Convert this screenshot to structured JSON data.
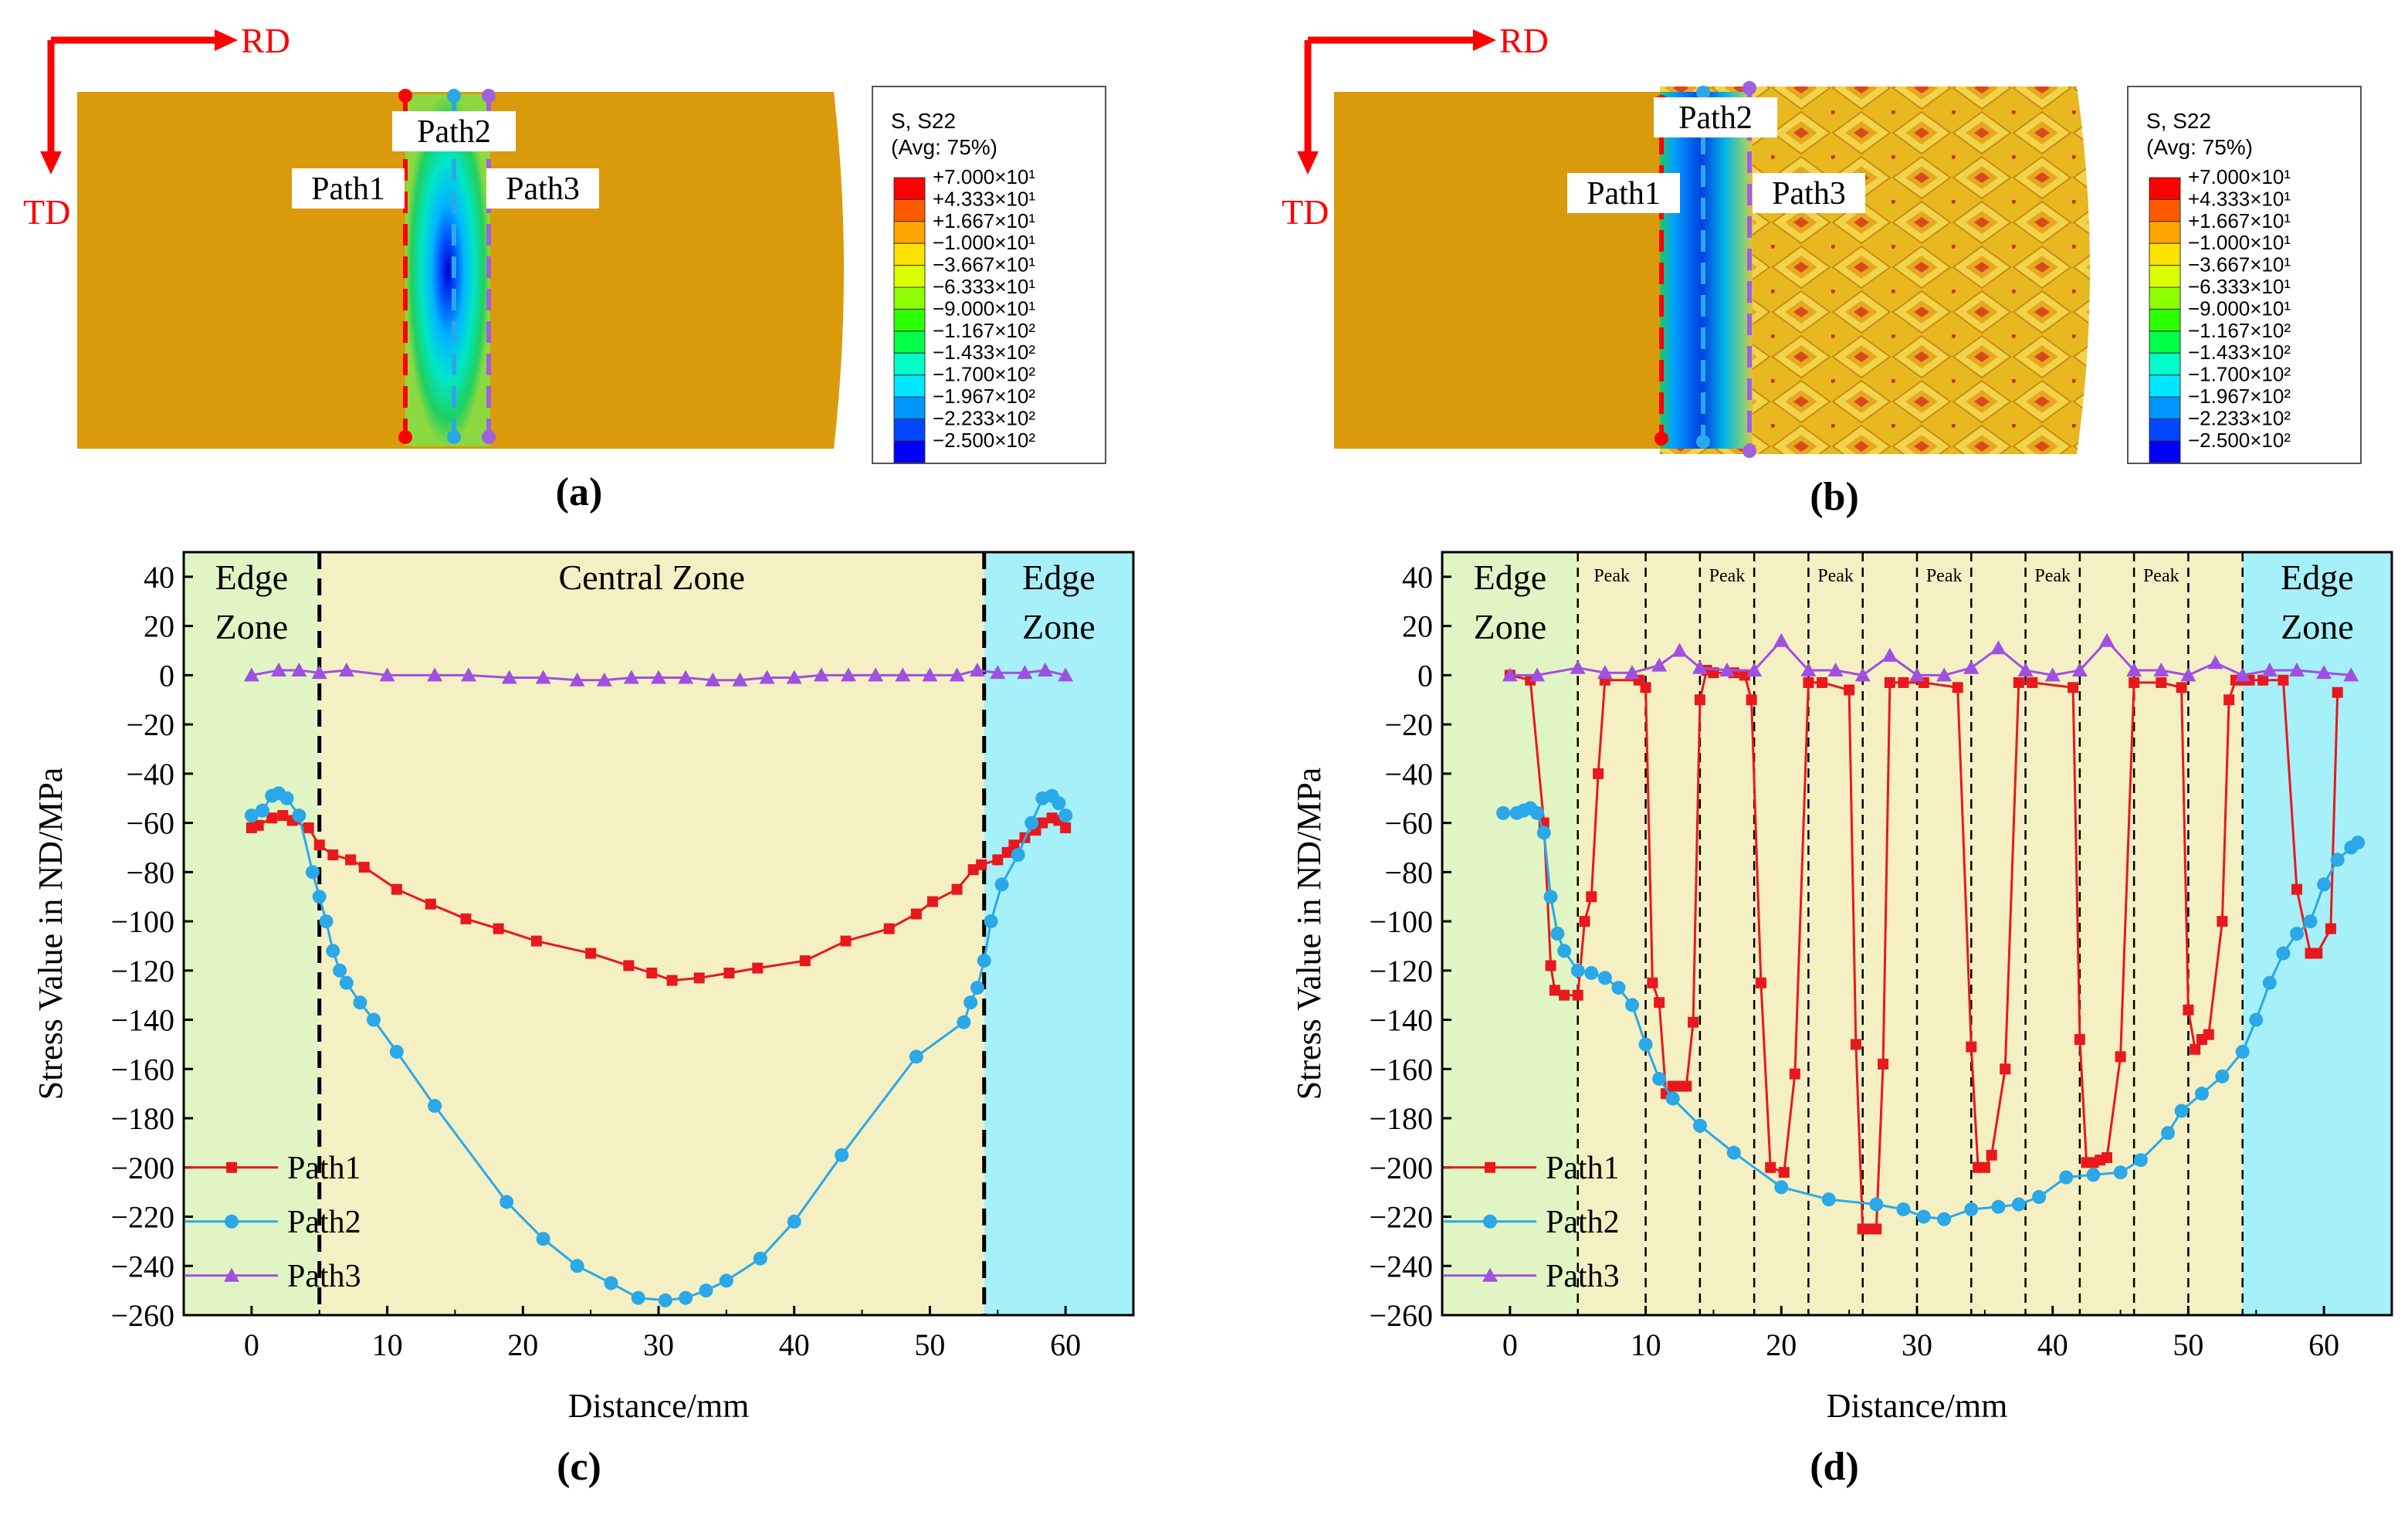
{
  "panels": {
    "a": {
      "label": "(a)",
      "axis_rd": "RD",
      "axis_td": "TD",
      "path_labels": [
        "Path1",
        "Path2",
        "Path3"
      ],
      "legend": {
        "title1": "S, S22",
        "title2": "(Avg: 75%)",
        "entries": [
          "+7.000×10¹",
          "+4.333×10¹",
          "+1.667×10¹",
          "−1.000×10¹",
          "−3.667×10¹",
          "−6.333×10¹",
          "−9.000×10¹",
          "−1.167×10²",
          "−1.433×10²",
          "−1.700×10²",
          "−1.967×10²",
          "−2.233×10²",
          "−2.500×10²"
        ]
      }
    },
    "b": {
      "label": "(b)",
      "axis_rd": "RD",
      "axis_td": "TD",
      "path_labels": [
        "Path1",
        "Path2",
        "Path3"
      ],
      "legend": {
        "title1": "S, S22",
        "title2": "(Avg: 75%)",
        "entries": [
          "+7.000×10¹",
          "+4.333×10¹",
          "+1.667×10¹",
          "−1.000×10¹",
          "−3.667×10¹",
          "−6.333×10¹",
          "−9.000×10¹",
          "−1.167×10²",
          "−1.433×10²",
          "−1.700×10²",
          "−1.967×10²",
          "−2.233×10²",
          "−2.500×10²"
        ]
      }
    },
    "c": {
      "label": "(c)"
    },
    "d": {
      "label": "(d)"
    }
  },
  "colors": {
    "plate": "#d99a0c",
    "legend_scale": [
      "#ff0000",
      "#ff5a00",
      "#ffa500",
      "#ffe100",
      "#dcff00",
      "#8cff00",
      "#2cff00",
      "#00ff46",
      "#00ffc8",
      "#00e6ff",
      "#0096ff",
      "#0046ff",
      "#0000ff"
    ],
    "edge_left": "#e1f5c4",
    "central": "#f4f0c3",
    "edge_right": "#a6f0fa",
    "path1": "#e8181c",
    "path2": "#2aa8e8",
    "path3": "#a050e0"
  },
  "chart_data": [
    {
      "type": "line",
      "panel": "(c)",
      "xlabel": "Distance/mm",
      "ylabel": "Stress Value in ND/MPa",
      "xlim": [
        -5,
        65
      ],
      "ylim": [
        -260,
        50
      ],
      "xticks": [
        0,
        10,
        20,
        30,
        40,
        50,
        60
      ],
      "yticks": [
        40,
        20,
        0,
        -20,
        -40,
        -60,
        -80,
        -100,
        -120,
        -140,
        -160,
        -180,
        -200,
        -220,
        -240,
        -260
      ],
      "zones": [
        {
          "name": "Edge Zone",
          "lines": [
            "Edge",
            "Zone"
          ],
          "x": [
            -5,
            5
          ]
        },
        {
          "name": "Central Zone",
          "lines": [
            "Central Zone"
          ],
          "x": [
            5,
            54
          ]
        },
        {
          "name": "Edge Zone",
          "lines": [
            "Edge",
            "Zone"
          ],
          "x": [
            54,
            65
          ]
        }
      ],
      "boundaries": [
        5,
        54
      ],
      "series": [
        {
          "name": "Path1",
          "marker": "square",
          "x": [
            0,
            0.5,
            1.5,
            2.3,
            3.0,
            4.2,
            5.0,
            6.0,
            7.3,
            8.3,
            10.7,
            13.2,
            15.8,
            18.2,
            21.0,
            25.0,
            27.8,
            29.5,
            31.0,
            33.0,
            35.2,
            37.3,
            40.8,
            43.8,
            47.0,
            49.0,
            50.2,
            52.0,
            53.2,
            53.8,
            55.0,
            55.7,
            56.2,
            57.0,
            57.8,
            58.3,
            59.0,
            59.5,
            60.0
          ],
          "y": [
            -62,
            -61,
            -58,
            -57,
            -59,
            -62,
            -69,
            -73,
            -75,
            -78,
            -87,
            -93,
            -99,
            -103,
            -108,
            -113,
            -118,
            -121,
            -124,
            -123,
            -121,
            -119,
            -116,
            -108,
            -103,
            -97,
            -92,
            -87,
            -79,
            -77,
            -75,
            -72,
            -69,
            -66,
            -63,
            -60,
            -58,
            -59,
            -62
          ]
        },
        {
          "name": "Path2",
          "marker": "circle",
          "x": [
            0,
            0.8,
            1.5,
            2.0,
            2.6,
            3.5,
            4.5,
            5.0,
            5.5,
            6.0,
            6.5,
            7.0,
            8.0,
            9.0,
            10.7,
            13.5,
            18.8,
            21.5,
            24.0,
            26.5,
            28.5,
            30.5,
            32.0,
            33.5,
            35.0,
            37.5,
            40.0,
            43.5,
            49.0,
            52.5,
            53.0,
            53.5,
            54.0,
            54.5,
            55.3,
            56.5,
            57.5,
            58.3,
            59.0,
            59.5,
            60.0
          ],
          "y": [
            -57,
            -55,
            -49,
            -48,
            -50,
            -57,
            -80,
            -90,
            -100,
            -112,
            -120,
            -125,
            -133,
            -140,
            -153,
            -175,
            -214,
            -229,
            -240,
            -247,
            -253,
            -254,
            -253,
            -250,
            -246,
            -237,
            -222,
            -195,
            -155,
            -141,
            -133,
            -127,
            -116,
            -100,
            -85,
            -73,
            -60,
            -50,
            -49,
            -52,
            -57
          ]
        },
        {
          "name": "Path3",
          "marker": "triangle",
          "x": [
            0,
            2,
            3.5,
            5,
            7,
            10,
            13.5,
            16,
            19,
            21.5,
            24,
            26,
            28,
            30,
            32,
            34,
            36,
            38,
            40,
            42,
            44,
            46,
            48,
            50,
            52,
            53.5,
            55,
            57,
            58.5,
            60
          ],
          "y": [
            0,
            2,
            2,
            1,
            2,
            0,
            0,
            0,
            -1,
            -1,
            -2,
            -2,
            -1,
            -1,
            -1,
            -2,
            -2,
            -1,
            -1,
            0,
            0,
            0,
            0,
            0,
            0,
            2,
            1,
            1,
            2,
            0
          ]
        }
      ]
    },
    {
      "type": "line",
      "panel": "(d)",
      "xlabel": "Distance/mm",
      "ylabel": "Stress Value in ND/MPa",
      "xlim": [
        -5,
        65
      ],
      "ylim": [
        -260,
        50
      ],
      "xticks": [
        0,
        10,
        20,
        30,
        40,
        50,
        60
      ],
      "yticks": [
        40,
        20,
        0,
        -20,
        -40,
        -60,
        -80,
        -100,
        -120,
        -140,
        -160,
        -180,
        -200,
        -220,
        -240,
        -260
      ],
      "zones": [
        {
          "name": "Edge Zone",
          "lines": [
            "Edge",
            "Zone"
          ],
          "x": [
            -5,
            5
          ]
        },
        {
          "name": "Peak zones",
          "lines": [],
          "x": [
            5,
            54
          ]
        },
        {
          "name": "Edge Zone",
          "lines": [
            "Edge",
            "Zone"
          ],
          "x": [
            54,
            65
          ]
        }
      ],
      "boundaries": [
        5,
        10,
        14,
        18,
        22,
        26,
        30,
        34,
        38,
        42,
        46,
        50,
        54
      ],
      "peak_label": "Peak",
      "peak_centers": [
        7.5,
        16,
        24,
        32,
        40,
        48
      ],
      "series": [
        {
          "name": "Path1",
          "marker": "square",
          "x": [
            0,
            1.5,
            2.5,
            3.0,
            3.3,
            4.0,
            5.0,
            5.5,
            6.0,
            6.5,
            7.0,
            9.5,
            10.0,
            10.5,
            11.0,
            11.5,
            12.0,
            12.5,
            13.0,
            13.5,
            14.0,
            14.5,
            15.0,
            16.5,
            17.3,
            17.8,
            18.5,
            19.2,
            20.2,
            21.0,
            22.0,
            23.0,
            25.0,
            25.5,
            26.0,
            26.5,
            27.0,
            27.5,
            28.0,
            29.0,
            30.5,
            33.0,
            34.0,
            34.5,
            35.0,
            35.5,
            36.5,
            37.5,
            38.5,
            41.5,
            42.0,
            42.5,
            43.0,
            43.5,
            44.0,
            45.0,
            46.0,
            48.0,
            49.5,
            50.0,
            50.5,
            51.0,
            51.5,
            52.5,
            53.0,
            53.5,
            54.0,
            54.5,
            55.5,
            57.0,
            58.0,
            59.0,
            59.5,
            60.5,
            61.0
          ],
          "y": [
            0,
            -2,
            -60,
            -118,
            -128,
            -130,
            -130,
            -100,
            -90,
            -40,
            -2,
            -2,
            -5,
            -125,
            -133,
            -170,
            -167,
            -167,
            -167,
            -141,
            -10,
            2,
            1,
            1,
            0,
            -10,
            -125,
            -200,
            -202,
            -162,
            -3,
            -3,
            -6,
            -150,
            -225,
            -225,
            -225,
            -158,
            -3,
            -3,
            -3,
            -5,
            -151,
            -200,
            -200,
            -195,
            -160,
            -3,
            -3,
            -5,
            -148,
            -198,
            -198,
            -197,
            -196,
            -155,
            -3,
            -3,
            -5,
            -136,
            -152,
            -148,
            -146,
            -100,
            -10,
            -2,
            -2,
            -2,
            -2,
            -2,
            -87,
            -113,
            -113,
            -103,
            -7
          ]
        },
        {
          "name": "Path2",
          "marker": "circle",
          "x": [
            -0.5,
            0.5,
            1.0,
            1.5,
            2.0,
            2.5,
            3.0,
            3.5,
            4.0,
            5.0,
            6.0,
            7.0,
            8.0,
            9.0,
            10.0,
            11.0,
            12.0,
            14.0,
            16.5,
            20.0,
            23.5,
            27.0,
            29.0,
            30.5,
            32.0,
            34.0,
            36.0,
            37.5,
            39.0,
            41.0,
            43.0,
            45.0,
            46.5,
            48.5,
            49.5,
            51.0,
            52.5,
            54.0,
            55.0,
            56.0,
            57.0,
            58.0,
            59.0,
            60.0,
            61.0,
            62.0,
            62.5
          ],
          "y": [
            -56,
            -56,
            -55,
            -54,
            -56,
            -64,
            -90,
            -105,
            -112,
            -120,
            -121,
            -123,
            -127,
            -134,
            -150,
            -164,
            -172,
            -183,
            -194,
            -208,
            -213,
            -215,
            -217,
            -220,
            -221,
            -217,
            -216,
            -215,
            -212,
            -204,
            -203,
            -202,
            -197,
            -186,
            -177,
            -170,
            -163,
            -153,
            -140,
            -125,
            -113,
            -105,
            -100,
            -85,
            -75,
            -70,
            -68
          ]
        },
        {
          "name": "Path3",
          "marker": "triangle",
          "x": [
            0,
            2,
            5,
            7,
            9,
            11,
            12.5,
            14,
            16,
            18,
            20,
            22,
            24,
            26,
            28,
            30,
            32,
            34,
            36,
            38,
            40,
            42,
            44,
            46,
            48,
            50,
            52,
            54,
            56,
            58,
            60,
            62
          ],
          "y": [
            0,
            0,
            3,
            1,
            1,
            4,
            10,
            3,
            2,
            2,
            14,
            2,
            2,
            0,
            8,
            0,
            0,
            3,
            11,
            2,
            0,
            2,
            14,
            2,
            2,
            0,
            5,
            0,
            2,
            2,
            1,
            0
          ]
        }
      ]
    }
  ]
}
